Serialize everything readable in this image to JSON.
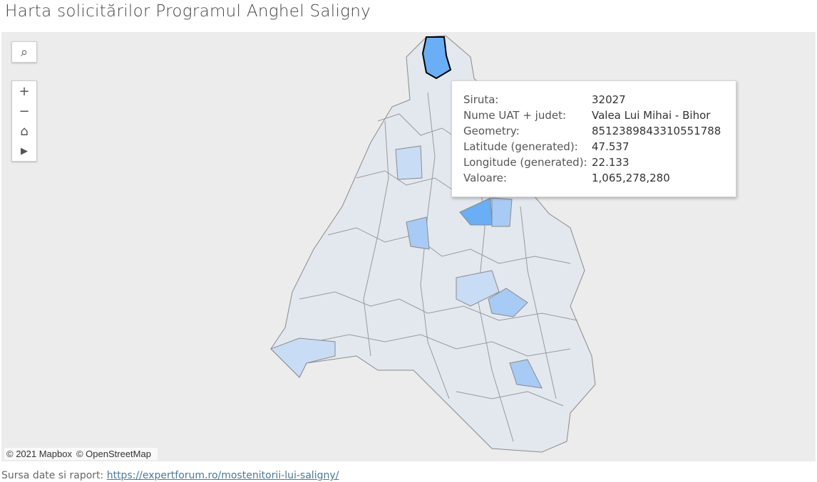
{
  "header": {
    "title": "Harta solicitărilor Programul Anghel Saligny"
  },
  "tooltip": {
    "rows": [
      [
        "Siruta:",
        "32027"
      ],
      [
        "Nume UAT + judet:",
        "Valea Lui Mihai - Bihor"
      ],
      [
        "Geometry:",
        "8512389843310551788"
      ],
      [
        "Latitude (generated):",
        "47.537"
      ],
      [
        "Longitude (generated):",
        "22.133"
      ],
      [
        "Valoare:",
        "1,065,278,280"
      ]
    ]
  },
  "map": {
    "attribution": [
      "© 2021 Mapbox",
      "© OpenStreetMap"
    ]
  },
  "footer": {
    "source_label": "Sursa date si raport:",
    "link": "https://expertforum.ro/mostenitorii-lui-saligny/"
  }
}
